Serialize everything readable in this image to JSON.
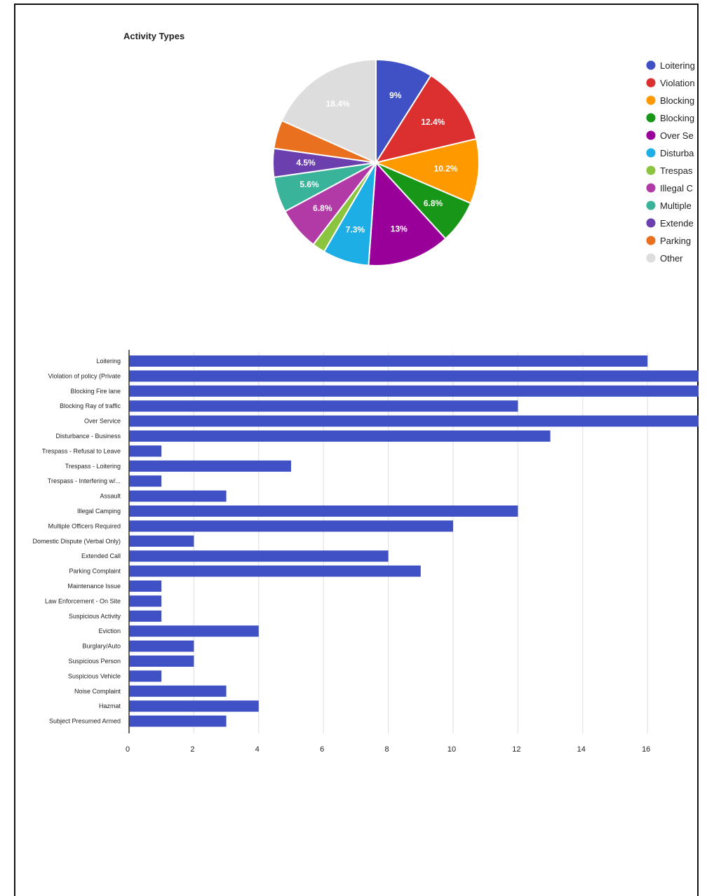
{
  "chart_data": [
    {
      "type": "pie",
      "title": "Activity Types",
      "legend_position": "right",
      "slices": [
        {
          "name": "Loitering",
          "value": 9.0,
          "label": "9%",
          "color": "#3f51c4"
        },
        {
          "name": "Violation",
          "value": 12.4,
          "label": "12.4%",
          "color": "#dc3030"
        },
        {
          "name": "Blocking",
          "value": 10.2,
          "label": "10.2%",
          "color": "#ff9900"
        },
        {
          "name": "Blocking",
          "value": 6.8,
          "label": "6.8%",
          "color": "#189618"
        },
        {
          "name": "Over Se",
          "value": 13.0,
          "label": "13%",
          "color": "#990099"
        },
        {
          "name": "Disturba",
          "value": 7.3,
          "label": "7.3%",
          "color": "#1eaee6"
        },
        {
          "name": "Trespas",
          "value": 2.0,
          "label": "",
          "color": "#8bc53f"
        },
        {
          "name": "Illegal C",
          "value": 6.8,
          "label": "6.8%",
          "color": "#b23aa6"
        },
        {
          "name": "Multiple",
          "value": 5.6,
          "label": "5.6%",
          "color": "#3ab39b"
        },
        {
          "name": "Extende",
          "value": 4.5,
          "label": "4.5%",
          "color": "#6b3fae"
        },
        {
          "name": "Parking",
          "value": 4.5,
          "label": "",
          "color": "#e8701f"
        },
        {
          "name": "Other",
          "value": 18.4,
          "label": "18.4%",
          "color": "#dddddd"
        }
      ]
    },
    {
      "type": "bar",
      "orientation": "horizontal",
      "color": "#3f51c4",
      "xlim": [
        0,
        17.5
      ],
      "xticks": [
        0,
        2,
        4,
        6,
        8,
        10,
        12,
        14,
        16
      ],
      "grid": true,
      "categories": [
        "Loitering",
        "Violation of policy (Private",
        "Blocking Fire lane",
        "Blocking Ray of traffic",
        "Over Service",
        "Disturbance - Business",
        "Trespass - Refusal to Leave",
        "Trespass - Loitering",
        "Trespass - Interfering w/...",
        "Assault",
        "Illegal Camping",
        "Multiple Officers Required",
        "Domestic Dispute (Verbal Only)",
        "Extended Call",
        "Parking Complaint",
        "Maintenance Issue",
        "Law Enforcement - On Site",
        "Suspicious Activity",
        "Eviction",
        "Burglary/Auto",
        "Suspicious Person",
        "Suspicious Vehicle",
        "Noise Complaint",
        "Hazmat",
        "Subject Presumed Armed"
      ],
      "values": [
        16,
        18,
        18,
        12,
        18,
        13,
        1,
        5,
        1,
        3,
        12,
        10,
        2,
        8,
        9,
        1,
        1,
        1,
        4,
        2,
        2,
        1,
        3,
        4,
        3
      ]
    }
  ]
}
